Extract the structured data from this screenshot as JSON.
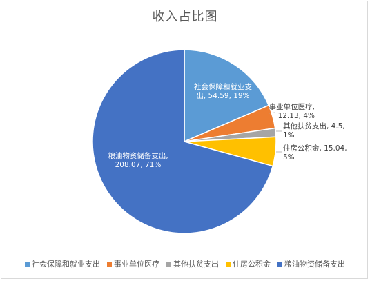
{
  "chart_data": {
    "type": "pie",
    "title": "收入占比图",
    "categories": [
      "社会保障和就业支出",
      "事业单位医疗",
      "其他扶贫支出",
      "住房公积金",
      "粮油物资储备支出"
    ],
    "values": [
      54.59,
      12.13,
      4.5,
      15.04,
      208.07
    ],
    "percent_labels": [
      "19%",
      "4%",
      "1%",
      "5%",
      "71%"
    ],
    "colors": [
      "#5b9bd5",
      "#ed7d31",
      "#a5a5a5",
      "#ffc000",
      "#4472c4"
    ],
    "data_labels": [
      [
        "社会保障和就业支",
        "出, 54.59, 19%"
      ],
      [
        "事业单位医疗,",
        "12.13, 4%"
      ],
      [
        "其他扶贫支出, 4.5,",
        "1%"
      ],
      [
        "住房公积金, 15.04,",
        "5%"
      ],
      [
        "粮油物资储备支出,",
        "208.07, 71%"
      ]
    ],
    "legend_position": "bottom",
    "start_angle_deg": 0,
    "direction": "clockwise"
  }
}
